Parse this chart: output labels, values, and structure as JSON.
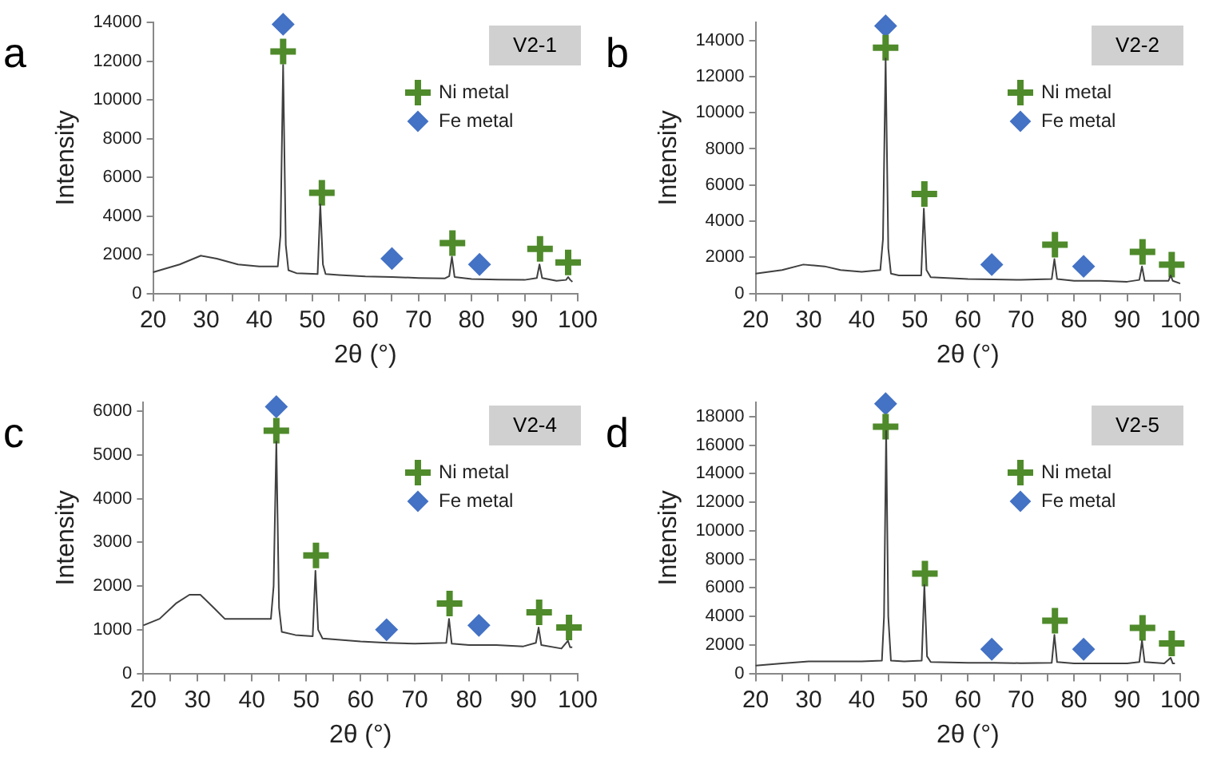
{
  "chart_data": [
    {
      "type": "line",
      "xlabel": "2θ (°)",
      "ylabel": "Intensity",
      "annotations": [
        "a",
        "V2-1"
      ],
      "legend": "top right",
      "grid": false,
      "xlim": [
        20,
        100
      ],
      "xticks": [
        20,
        {
          "value": 25,
          "label": null
        },
        30,
        {
          "value": 35,
          "label": null
        },
        40,
        {
          "value": 45,
          "label": null
        },
        50,
        {
          "value": 55,
          "label": null
        },
        60,
        {
          "value": 65,
          "label": null
        },
        70,
        {
          "value": 75,
          "label": null
        },
        80,
        {
          "value": 85,
          "label": null
        },
        90,
        {
          "value": 95,
          "label": null
        },
        100
      ],
      "ylim": [
        0,
        14000
      ],
      "yticks": [
        0,
        2000,
        4000,
        6000,
        8000,
        10000,
        12000,
        14000
      ],
      "series": [
        {
          "type": "line",
          "color": "#404040",
          "marker": "none",
          "x": [
            20,
            25,
            29,
            32,
            36,
            40,
            43.5,
            44,
            44.5,
            45,
            45.5,
            47,
            51,
            51.5,
            52,
            52.5,
            55,
            60,
            65,
            70,
            75,
            75.8,
            76.3,
            76.8,
            80,
            85,
            90,
            92.3,
            92.8,
            93.3,
            96,
            97.8,
            98.2,
            98.6,
            99
          ],
          "values": [
            1100,
            1500,
            1950,
            1800,
            1500,
            1400,
            1400,
            3000,
            11800,
            2500,
            1200,
            1050,
            1000,
            4600,
            1500,
            1000,
            950,
            880,
            850,
            800,
            780,
            900,
            1900,
            850,
            750,
            720,
            700,
            800,
            1500,
            800,
            650,
            700,
            850,
            700,
            600
          ]
        },
        {
          "type": "scatter",
          "name": "Ni metal",
          "color": "#4f8a2b",
          "marker": "cross",
          "x": [
            44.5,
            51.8,
            76.4,
            92.9,
            98.2
          ],
          "values": [
            12500,
            5200,
            2600,
            2300,
            1600
          ]
        },
        {
          "type": "scatter",
          "name": "Fe metal",
          "color": "#4472c4",
          "marker": "diamond",
          "x": [
            44.5,
            65,
            81.5
          ],
          "values": [
            13900,
            1800,
            1500
          ]
        }
      ]
    },
    {
      "type": "line",
      "xlabel": "2θ (°)",
      "ylabel": "Intensity",
      "annotations": [
        "b",
        "V2-2"
      ],
      "legend": "top right",
      "grid": false,
      "xlim": [
        20,
        100
      ],
      "xticks": [
        20,
        {
          "value": 25,
          "label": null
        },
        30,
        {
          "value": 35,
          "label": null
        },
        40,
        {
          "value": 45,
          "label": null
        },
        50,
        {
          "value": 55,
          "label": null
        },
        60,
        {
          "value": 65,
          "label": null
        },
        70,
        {
          "value": 75,
          "label": null
        },
        80,
        {
          "value": 85,
          "label": null
        },
        90,
        {
          "value": 95,
          "label": null
        },
        100
      ],
      "ylim": [
        0,
        15000
      ],
      "yticks": [
        0,
        2000,
        4000,
        6000,
        8000,
        10000,
        12000,
        14000
      ],
      "series": [
        {
          "type": "line",
          "color": "#404040",
          "marker": "none",
          "x": [
            20,
            25,
            29,
            33,
            36,
            40,
            43.5,
            44,
            44.5,
            45,
            45.5,
            47,
            51.2,
            51.7,
            52.2,
            53,
            60,
            65,
            70,
            75.8,
            76.3,
            76.8,
            80,
            85,
            90,
            92.3,
            92.8,
            93.3,
            97.8,
            98.2,
            98.6,
            100
          ],
          "values": [
            1100,
            1300,
            1600,
            1500,
            1300,
            1200,
            1300,
            3000,
            13000,
            2500,
            1100,
            1000,
            1000,
            4700,
            1300,
            900,
            800,
            780,
            750,
            800,
            1900,
            800,
            700,
            700,
            650,
            750,
            1500,
            700,
            700,
            1000,
            700,
            550
          ]
        },
        {
          "type": "scatter",
          "name": "Ni metal",
          "color": "#4f8a2b",
          "marker": "cross",
          "x": [
            44.5,
            51.8,
            76.4,
            92.9,
            98.4
          ],
          "values": [
            13600,
            5500,
            2700,
            2300,
            1600
          ]
        },
        {
          "type": "scatter",
          "name": "Fe metal",
          "color": "#4472c4",
          "marker": "diamond",
          "x": [
            44.5,
            64.5,
            81.8
          ],
          "values": [
            14800,
            1600,
            1500
          ]
        }
      ]
    },
    {
      "type": "line",
      "xlabel": "2θ (°)",
      "ylabel": "Intensity",
      "annotations": [
        "c",
        "V2-4"
      ],
      "legend": "top right",
      "grid": false,
      "xlim": [
        20,
        100
      ],
      "xticks": [
        20,
        {
          "value": 25,
          "label": null
        },
        30,
        {
          "value": 35,
          "label": null
        },
        40,
        {
          "value": 45,
          "label": null
        },
        50,
        {
          "value": 55,
          "label": null
        },
        60,
        {
          "value": 65,
          "label": null
        },
        70,
        {
          "value": 75,
          "label": null
        },
        80,
        {
          "value": 85,
          "label": null
        },
        90,
        {
          "value": 95,
          "label": null
        },
        100
      ],
      "ylim": [
        0,
        6200
      ],
      "yticks": [
        0,
        1000,
        2000,
        3000,
        4000,
        5000,
        6000
      ],
      "series": [
        {
          "type": "line",
          "color": "#404040",
          "marker": "none",
          "x": [
            20,
            23,
            26,
            28.5,
            30.5,
            33,
            35,
            40,
            43.5,
            44,
            44.5,
            45,
            45.5,
            48,
            51.2,
            51.7,
            52.2,
            53,
            60,
            65,
            70,
            75.8,
            76.3,
            76.8,
            80,
            85,
            90,
            92.3,
            92.8,
            93.3,
            97,
            98.2,
            98.6,
            99
          ],
          "values": [
            1100,
            1250,
            1600,
            1800,
            1800,
            1500,
            1250,
            1250,
            1250,
            2000,
            5300,
            1500,
            950,
            880,
            850,
            2350,
            1000,
            800,
            730,
            700,
            680,
            700,
            1250,
            680,
            650,
            650,
            620,
            700,
            1050,
            650,
            570,
            750,
            600,
            600
          ]
        },
        {
          "type": "scatter",
          "name": "Ni metal",
          "color": "#4f8a2b",
          "marker": "cross",
          "x": [
            44.5,
            51.8,
            76.4,
            92.9,
            98.4
          ],
          "values": [
            5550,
            2700,
            1600,
            1400,
            1050
          ]
        },
        {
          "type": "scatter",
          "name": "Fe metal",
          "color": "#4472c4",
          "marker": "diamond",
          "x": [
            44.5,
            64.8,
            81.8
          ],
          "values": [
            6100,
            1000,
            1100
          ]
        }
      ]
    },
    {
      "type": "line",
      "xlabel": "2θ (°)",
      "ylabel": "Intensity",
      "annotations": [
        "d",
        "V2-5"
      ],
      "legend": "top right",
      "grid": false,
      "xlim": [
        20,
        100
      ],
      "xticks": [
        20,
        {
          "value": 25,
          "label": null
        },
        30,
        {
          "value": 35,
          "label": null
        },
        40,
        {
          "value": 45,
          "label": null
        },
        50,
        {
          "value": 55,
          "label": null
        },
        60,
        {
          "value": 65,
          "label": null
        },
        70,
        {
          "value": 75,
          "label": null
        },
        80,
        {
          "value": 85,
          "label": null
        },
        90,
        {
          "value": 95,
          "label": null
        },
        100
      ],
      "ylim": [
        0,
        19000
      ],
      "yticks": [
        0,
        2000,
        4000,
        6000,
        8000,
        10000,
        12000,
        14000,
        16000,
        18000
      ],
      "series": [
        {
          "type": "line",
          "color": "#404040",
          "marker": "none",
          "x": [
            20,
            25,
            30,
            35,
            40,
            43.8,
            44.2,
            44.6,
            45,
            45.5,
            48,
            51.3,
            51.8,
            52.3,
            53,
            60,
            65,
            70,
            75.8,
            76.3,
            76.8,
            80,
            85,
            90,
            92.3,
            92.8,
            93.3,
            97,
            98.2,
            98.6,
            99
          ],
          "values": [
            550,
            700,
            850,
            850,
            850,
            900,
            4000,
            17000,
            4000,
            900,
            850,
            900,
            6200,
            1200,
            800,
            750,
            750,
            720,
            750,
            2700,
            800,
            700,
            700,
            700,
            800,
            2300,
            800,
            700,
            1100,
            700,
            700
          ]
        },
        {
          "type": "scatter",
          "name": "Ni metal",
          "color": "#4f8a2b",
          "marker": "cross",
          "x": [
            44.5,
            51.9,
            76.4,
            92.9,
            98.4
          ],
          "values": [
            17300,
            7000,
            3700,
            3200,
            2100
          ]
        },
        {
          "type": "scatter",
          "name": "Fe metal",
          "color": "#4472c4",
          "marker": "diamond",
          "x": [
            44.5,
            64.5,
            81.8
          ],
          "values": [
            18900,
            1700,
            1700
          ]
        }
      ]
    }
  ]
}
